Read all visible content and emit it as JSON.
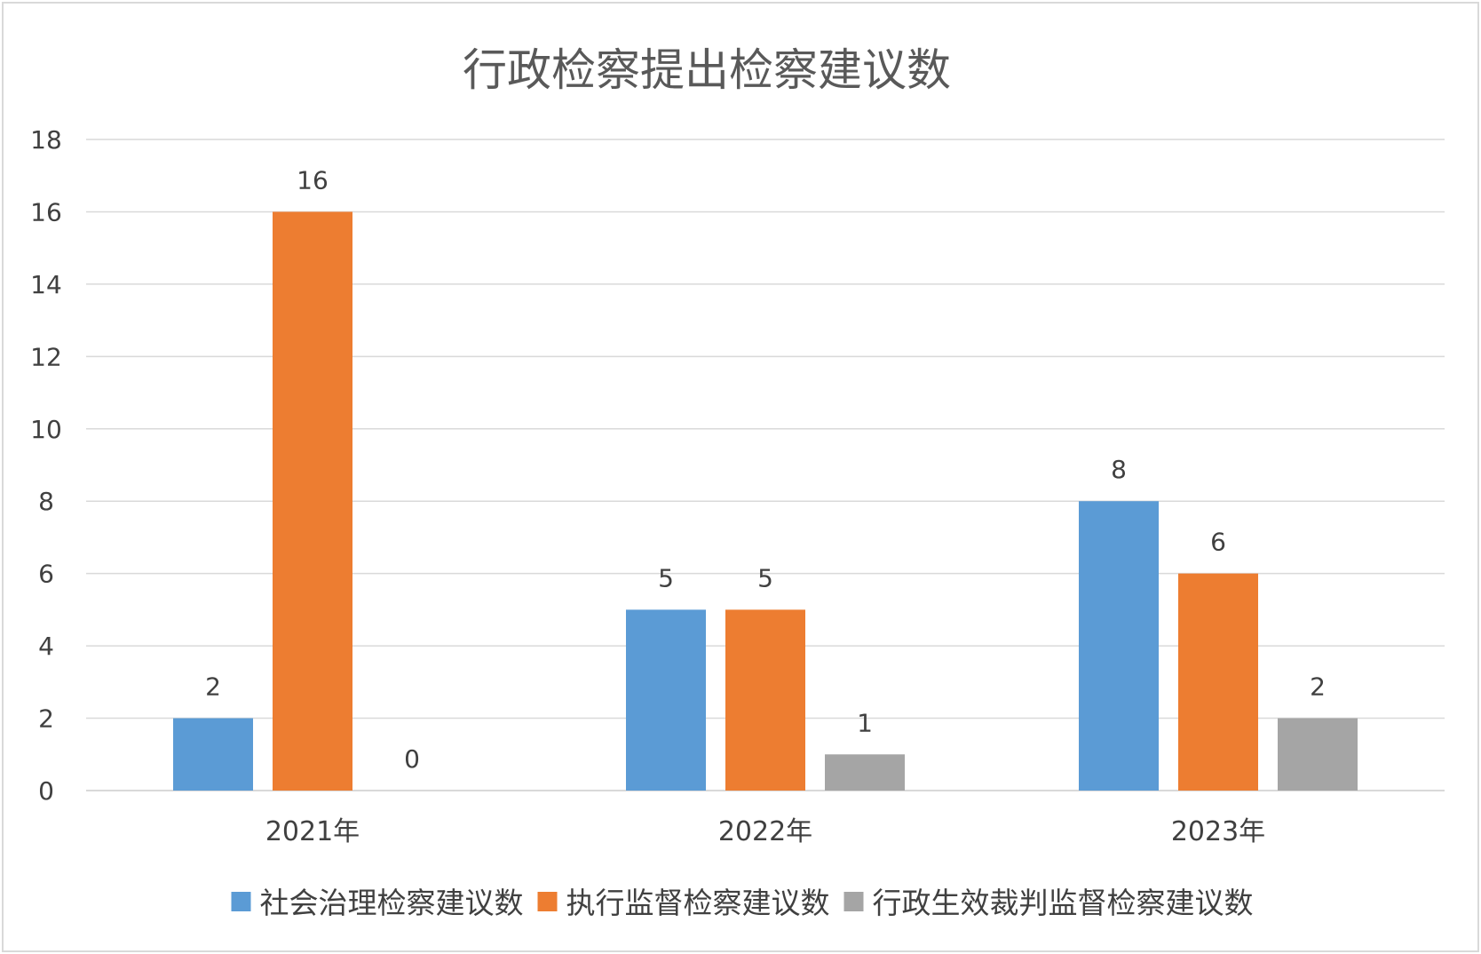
{
  "chart_data": {
    "type": "bar",
    "title": "行政检察提出检察建议数",
    "categories": [
      "2021年",
      "2022年",
      "2023年"
    ],
    "series": [
      {
        "name": "社会治理检察建议数",
        "values": [
          2,
          5,
          8
        ],
        "color": "#5b9bd5"
      },
      {
        "name": "执行监督检察建议数",
        "values": [
          16,
          5,
          6
        ],
        "color": "#ed7d31"
      },
      {
        "name": "行政生效裁判监督检察建议数",
        "values": [
          0,
          1,
          2
        ],
        "color": "#a5a5a5"
      }
    ],
    "ylim": [
      0,
      18
    ],
    "yticks": [
      0,
      2,
      4,
      6,
      8,
      10,
      12,
      14,
      16,
      18
    ],
    "grid": true,
    "legend_position": "bottom",
    "data_labels": true,
    "gridline_color": "#d9d9d9",
    "text_color": "#404040",
    "title_color": "#595959"
  }
}
